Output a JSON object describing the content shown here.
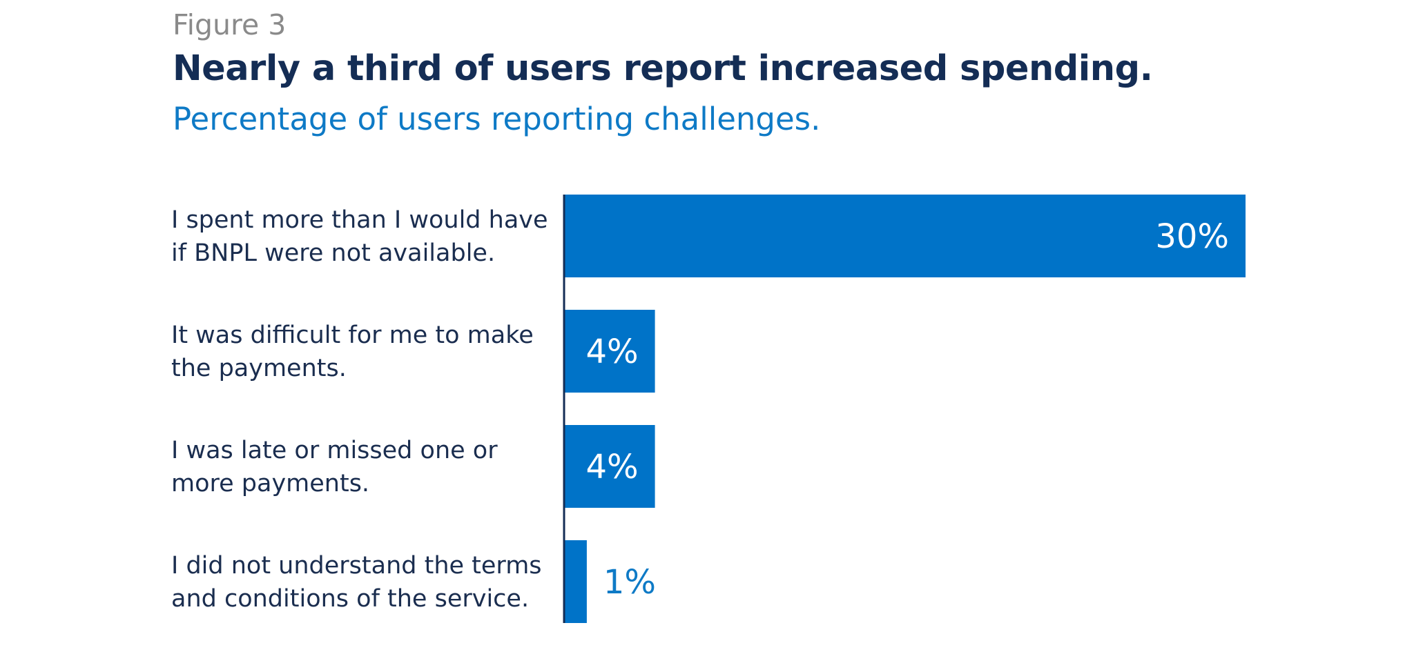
{
  "figure": {
    "label": "Figure 3",
    "title": "Nearly a third of users report increased spending.",
    "subtitle": "Percentage of users reporting challenges."
  },
  "colors": {
    "bar": "#0073c8",
    "axis": "#142d55",
    "label_inside": "#ffffff",
    "label_outside": "#0e7ac6"
  },
  "chart_data": {
    "type": "bar",
    "orientation": "horizontal",
    "title": "Nearly a third of users report increased spending.",
    "subtitle": "Percentage of users reporting challenges.",
    "categories": [
      [
        "I spent more than I would have",
        "if BNPL were not available."
      ],
      [
        "It was difficult for me to make",
        "the payments."
      ],
      [
        "I was late or missed one or",
        "more payments."
      ],
      [
        "I did not understand the terms",
        "and conditions of the service."
      ]
    ],
    "values": [
      30,
      4,
      4,
      1
    ],
    "data_labels": [
      "30%",
      "4%",
      "4%",
      "1%"
    ],
    "unit": "%",
    "xlim": [
      0,
      30
    ],
    "grid": false,
    "legend": "none"
  }
}
